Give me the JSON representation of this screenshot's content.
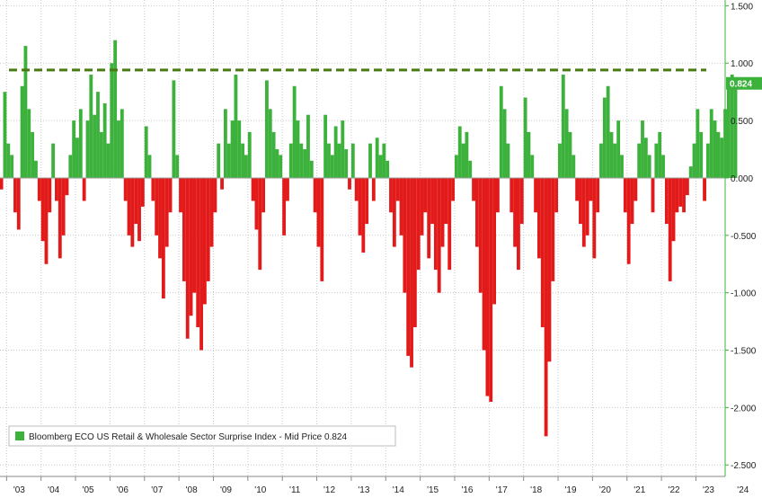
{
  "chart_data": {
    "type": "bar",
    "legend": {
      "label": "Bloomberg ECO US Retail & Wholesale Sector Surprise Index - Mid Price 0.824",
      "position": "bottom-left"
    },
    "last_value": 0.824,
    "last_value_label": "0.824",
    "reference_line": {
      "value": 0.94,
      "style": "dashed",
      "color": "#4a7a12"
    },
    "ylim": [
      -2.6,
      1.55
    ],
    "ytick_values": [
      1.5,
      1.0,
      0.5,
      0.0,
      -0.5,
      -1.0,
      -1.5,
      -2.0,
      -2.5
    ],
    "ytick_labels": [
      "1.500",
      "1.000",
      "0.500",
      "0.000",
      "-0.500",
      "-1.000",
      "-1.500",
      "-2.000",
      "-2.500"
    ],
    "xlim": [
      2002.6,
      2024.5
    ],
    "xtick_values": [
      2003,
      2004,
      2005,
      2006,
      2007,
      2008,
      2009,
      2010,
      2011,
      2012,
      2013,
      2014,
      2015,
      2016,
      2017,
      2018,
      2019,
      2020,
      2021,
      2022,
      2023,
      2024
    ],
    "xtick_labels": [
      "'03",
      "'04",
      "'05",
      "'06",
      "'07",
      "'08",
      "'09",
      "'10",
      "'11",
      "'12",
      "'13",
      "'14",
      "'15",
      "'16",
      "'17",
      "'18",
      "'19",
      "'20",
      "'21",
      "'22",
      "'23",
      "'24"
    ],
    "grid": true,
    "colors": {
      "positive": "#3cb23c",
      "negative": "#e21a1a",
      "last_badge": "#3cb23c"
    },
    "series": [
      {
        "points": [
          [
            2002.6,
            0.25
          ],
          [
            2002.7,
            0.05
          ],
          [
            2002.8,
            -0.1
          ],
          [
            2002.9,
            0.75
          ],
          [
            2003.0,
            0.3
          ],
          [
            2003.1,
            0.2
          ],
          [
            2003.2,
            -0.3
          ],
          [
            2003.3,
            -0.45
          ],
          [
            2003.4,
            0.8
          ],
          [
            2003.5,
            1.15
          ],
          [
            2003.6,
            0.6
          ],
          [
            2003.7,
            0.4
          ],
          [
            2003.8,
            0.15
          ],
          [
            2003.9,
            -0.2
          ],
          [
            2004.0,
            -0.55
          ],
          [
            2004.1,
            -0.75
          ],
          [
            2004.2,
            -0.3
          ],
          [
            2004.3,
            0.3
          ],
          [
            2004.4,
            -0.2
          ],
          [
            2004.5,
            -0.7
          ],
          [
            2004.6,
            -0.5
          ],
          [
            2004.7,
            -0.15
          ],
          [
            2004.8,
            0.2
          ],
          [
            2004.9,
            0.5
          ],
          [
            2005.0,
            0.35
          ],
          [
            2005.1,
            0.6
          ],
          [
            2005.2,
            -0.2
          ],
          [
            2005.3,
            0.5
          ],
          [
            2005.4,
            0.9
          ],
          [
            2005.5,
            0.55
          ],
          [
            2005.6,
            0.75
          ],
          [
            2005.7,
            0.4
          ],
          [
            2005.8,
            0.65
          ],
          [
            2005.9,
            0.3
          ],
          [
            2006.0,
            1.0
          ],
          [
            2006.1,
            1.2
          ],
          [
            2006.2,
            0.5
          ],
          [
            2006.3,
            0.6
          ],
          [
            2006.4,
            -0.2
          ],
          [
            2006.5,
            -0.5
          ],
          [
            2006.6,
            -0.6
          ],
          [
            2006.7,
            -0.4
          ],
          [
            2006.8,
            -0.55
          ],
          [
            2006.9,
            -0.25
          ],
          [
            2007.0,
            0.45
          ],
          [
            2007.1,
            0.2
          ],
          [
            2007.2,
            -0.2
          ],
          [
            2007.3,
            -0.5
          ],
          [
            2007.4,
            -0.7
          ],
          [
            2007.5,
            -1.05
          ],
          [
            2007.6,
            -0.6
          ],
          [
            2007.7,
            -0.3
          ],
          [
            2007.8,
            0.85
          ],
          [
            2007.9,
            0.2
          ],
          [
            2008.0,
            -0.3
          ],
          [
            2008.1,
            -0.9
          ],
          [
            2008.2,
            -1.4
          ],
          [
            2008.3,
            -1.2
          ],
          [
            2008.4,
            -1.0
          ],
          [
            2008.5,
            -1.3
          ],
          [
            2008.6,
            -1.5
          ],
          [
            2008.7,
            -1.1
          ],
          [
            2008.8,
            -0.9
          ],
          [
            2008.9,
            -0.6
          ],
          [
            2009.0,
            -0.3
          ],
          [
            2009.1,
            0.3
          ],
          [
            2009.2,
            -0.1
          ],
          [
            2009.3,
            0.6
          ],
          [
            2009.4,
            0.3
          ],
          [
            2009.5,
            0.5
          ],
          [
            2009.6,
            0.9
          ],
          [
            2009.7,
            0.5
          ],
          [
            2009.8,
            0.3
          ],
          [
            2009.9,
            0.2
          ],
          [
            2010.0,
            0.4
          ],
          [
            2010.1,
            -0.2
          ],
          [
            2010.2,
            -0.45
          ],
          [
            2010.3,
            -0.8
          ],
          [
            2010.4,
            -0.3
          ],
          [
            2010.5,
            0.85
          ],
          [
            2010.6,
            0.6
          ],
          [
            2010.7,
            0.4
          ],
          [
            2010.8,
            0.25
          ],
          [
            2010.9,
            0.2
          ],
          [
            2011.0,
            -0.5
          ],
          [
            2011.1,
            -0.2
          ],
          [
            2011.2,
            0.3
          ],
          [
            2011.3,
            0.8
          ],
          [
            2011.4,
            0.5
          ],
          [
            2011.5,
            0.3
          ],
          [
            2011.6,
            0.25
          ],
          [
            2011.7,
            0.55
          ],
          [
            2011.8,
            0.15
          ],
          [
            2011.9,
            -0.3
          ],
          [
            2012.0,
            -0.6
          ],
          [
            2012.1,
            -0.9
          ],
          [
            2012.2,
            0.55
          ],
          [
            2012.3,
            0.3
          ],
          [
            2012.4,
            0.2
          ],
          [
            2012.5,
            0.45
          ],
          [
            2012.6,
            0.3
          ],
          [
            2012.7,
            0.5
          ],
          [
            2012.8,
            0.25
          ],
          [
            2012.9,
            -0.1
          ],
          [
            2013.0,
            0.3
          ],
          [
            2013.1,
            -0.2
          ],
          [
            2013.2,
            -0.5
          ],
          [
            2013.3,
            -0.65
          ],
          [
            2013.4,
            -0.4
          ],
          [
            2013.5,
            0.3
          ],
          [
            2013.6,
            -0.2
          ],
          [
            2013.7,
            0.35
          ],
          [
            2013.8,
            0.2
          ],
          [
            2013.9,
            0.3
          ],
          [
            2014.0,
            0.15
          ],
          [
            2014.1,
            -0.3
          ],
          [
            2014.2,
            -0.6
          ],
          [
            2014.3,
            -0.2
          ],
          [
            2014.4,
            -0.5
          ],
          [
            2014.5,
            -1.0
          ],
          [
            2014.6,
            -1.55
          ],
          [
            2014.7,
            -1.65
          ],
          [
            2014.8,
            -1.3
          ],
          [
            2014.9,
            -0.8
          ],
          [
            2015.0,
            -0.5
          ],
          [
            2015.1,
            -0.3
          ],
          [
            2015.2,
            -0.7
          ],
          [
            2015.3,
            -0.4
          ],
          [
            2015.4,
            -0.8
          ],
          [
            2015.5,
            -1.0
          ],
          [
            2015.6,
            -0.6
          ],
          [
            2015.7,
            -0.4
          ],
          [
            2015.8,
            -0.8
          ],
          [
            2015.9,
            -0.2
          ],
          [
            2016.0,
            0.2
          ],
          [
            2016.1,
            0.45
          ],
          [
            2016.2,
            0.3
          ],
          [
            2016.3,
            0.4
          ],
          [
            2016.4,
            0.15
          ],
          [
            2016.5,
            -0.2
          ],
          [
            2016.6,
            -0.6
          ],
          [
            2016.7,
            -1.0
          ],
          [
            2016.8,
            -1.5
          ],
          [
            2016.9,
            -1.9
          ],
          [
            2017.0,
            -1.95
          ],
          [
            2017.1,
            -1.1
          ],
          [
            2017.2,
            -0.3
          ],
          [
            2017.3,
            0.8
          ],
          [
            2017.4,
            0.6
          ],
          [
            2017.5,
            0.3
          ],
          [
            2017.6,
            -0.3
          ],
          [
            2017.7,
            -0.6
          ],
          [
            2017.8,
            -0.8
          ],
          [
            2017.9,
            -0.4
          ],
          [
            2018.0,
            0.7
          ],
          [
            2018.1,
            0.4
          ],
          [
            2018.2,
            0.2
          ],
          [
            2018.3,
            -0.3
          ],
          [
            2018.4,
            -0.7
          ],
          [
            2018.5,
            -1.3
          ],
          [
            2018.6,
            -2.25
          ],
          [
            2018.7,
            -1.6
          ],
          [
            2018.8,
            -0.9
          ],
          [
            2018.9,
            -0.3
          ],
          [
            2019.0,
            0.3
          ],
          [
            2019.1,
            0.9
          ],
          [
            2019.2,
            0.6
          ],
          [
            2019.3,
            0.4
          ],
          [
            2019.4,
            0.2
          ],
          [
            2019.5,
            -0.2
          ],
          [
            2019.6,
            -0.4
          ],
          [
            2019.7,
            -0.6
          ],
          [
            2019.8,
            -0.5
          ],
          [
            2019.9,
            -0.2
          ],
          [
            2020.0,
            -0.7
          ],
          [
            2020.1,
            -0.3
          ],
          [
            2020.2,
            0.3
          ],
          [
            2020.3,
            0.7
          ],
          [
            2020.4,
            0.8
          ],
          [
            2020.5,
            0.4
          ],
          [
            2020.6,
            0.3
          ],
          [
            2020.7,
            0.5
          ],
          [
            2020.8,
            0.2
          ],
          [
            2020.9,
            -0.3
          ],
          [
            2021.0,
            -0.75
          ],
          [
            2021.1,
            -0.4
          ],
          [
            2021.2,
            -0.2
          ],
          [
            2021.3,
            0.3
          ],
          [
            2021.4,
            0.5
          ],
          [
            2021.5,
            0.35
          ],
          [
            2021.6,
            0.2
          ],
          [
            2021.7,
            -0.3
          ],
          [
            2021.8,
            0.3
          ],
          [
            2021.9,
            0.4
          ],
          [
            2022.0,
            0.2
          ],
          [
            2022.1,
            -0.4
          ],
          [
            2022.2,
            -0.9
          ],
          [
            2022.3,
            -0.55
          ],
          [
            2022.4,
            -0.3
          ],
          [
            2022.5,
            -0.25
          ],
          [
            2022.6,
            -0.3
          ],
          [
            2022.7,
            -0.15
          ],
          [
            2022.8,
            0.1
          ],
          [
            2022.9,
            0.3
          ],
          [
            2023.0,
            0.6
          ],
          [
            2023.1,
            0.4
          ],
          [
            2023.2,
            -0.2
          ],
          [
            2023.3,
            0.3
          ],
          [
            2023.4,
            0.6
          ],
          [
            2023.5,
            0.5
          ],
          [
            2023.6,
            0.4
          ],
          [
            2023.7,
            0.35
          ],
          [
            2023.8,
            0.6
          ],
          [
            2023.9,
            0.8
          ],
          [
            2024.0,
            0.9
          ],
          [
            2024.1,
            0.824
          ]
        ]
      }
    ]
  }
}
